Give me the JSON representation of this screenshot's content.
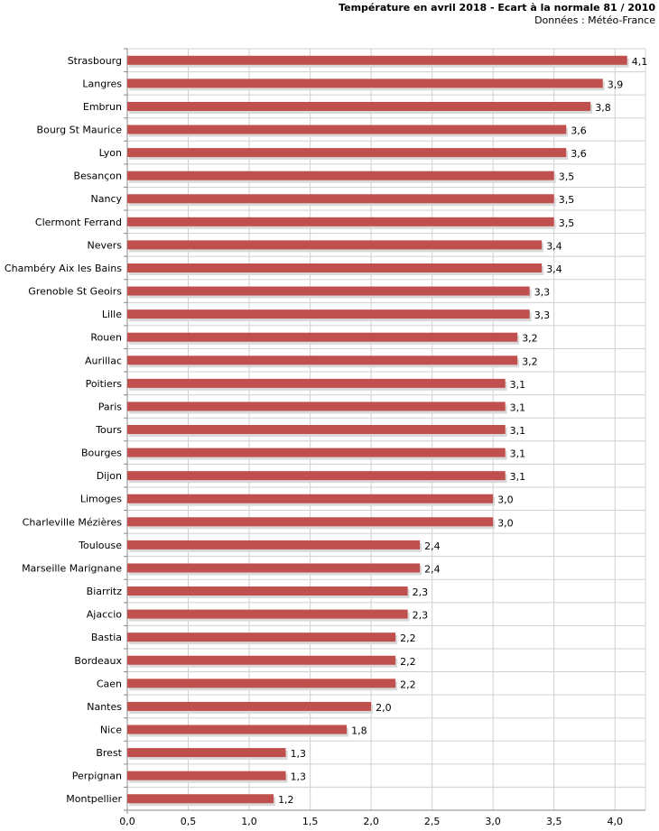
{
  "header": {
    "title": "Température en avril 2018 - Ecart à la normale 81 / 2010",
    "subtitle": "Données : Météo-France"
  },
  "colors": {
    "bar": "#c0504d",
    "bar_shadow": "#d9d9d9",
    "grid": "#d0d0d0",
    "axis": "#888888"
  },
  "chart_data": {
    "type": "bar",
    "orientation": "horizontal",
    "title": "Température en avril 2018 - Ecart à la normale 81 / 2010",
    "subtitle": "Données : Météo-France",
    "categories": [
      "Strasbourg",
      "Langres",
      "Embrun",
      "Bourg St Maurice",
      "Lyon",
      "Besançon",
      "Nancy",
      "Clermont Ferrand",
      "Nevers",
      "Chambéry Aix les Bains",
      "Grenoble St Geoirs",
      "Lille",
      "Rouen",
      "Aurillac",
      "Poitiers",
      "Paris",
      "Tours",
      "Bourges",
      "Dijon",
      "Limoges",
      "Charleville Mézières",
      "Toulouse",
      "Marseille Marignane",
      "Biarritz",
      "Ajaccio",
      "Bastia",
      "Bordeaux",
      "Caen",
      "Nantes",
      "Nice",
      "Brest",
      "Perpignan",
      "Montpellier"
    ],
    "values": [
      4.1,
      3.9,
      3.8,
      3.6,
      3.6,
      3.5,
      3.5,
      3.5,
      3.4,
      3.4,
      3.3,
      3.3,
      3.2,
      3.2,
      3.1,
      3.1,
      3.1,
      3.1,
      3.1,
      3.0,
      3.0,
      2.4,
      2.4,
      2.3,
      2.3,
      2.2,
      2.2,
      2.2,
      2.0,
      1.8,
      1.3,
      1.3,
      1.2
    ],
    "value_labels": [
      "4,1",
      "3,9",
      "3,8",
      "3,6",
      "3,6",
      "3,5",
      "3,5",
      "3,5",
      "3,4",
      "3,4",
      "3,3",
      "3,3",
      "3,2",
      "3,2",
      "3,1",
      "3,1",
      "3,1",
      "3,1",
      "3,1",
      "3,0",
      "3,0",
      "2,4",
      "2,4",
      "2,3",
      "2,3",
      "2,2",
      "2,2",
      "2,2",
      "2,0",
      "1,8",
      "1,3",
      "1,3",
      "1,2"
    ],
    "xlim": [
      0,
      4.25
    ],
    "xticks": [
      0,
      0.5,
      1,
      1.5,
      2,
      2.5,
      3,
      3.5,
      4
    ],
    "xtick_labels": [
      "0,0",
      "0,5",
      "1,0",
      "1,5",
      "2,0",
      "2,5",
      "3,0",
      "3,5",
      "4,0"
    ],
    "grid": true,
    "legend": "none"
  }
}
